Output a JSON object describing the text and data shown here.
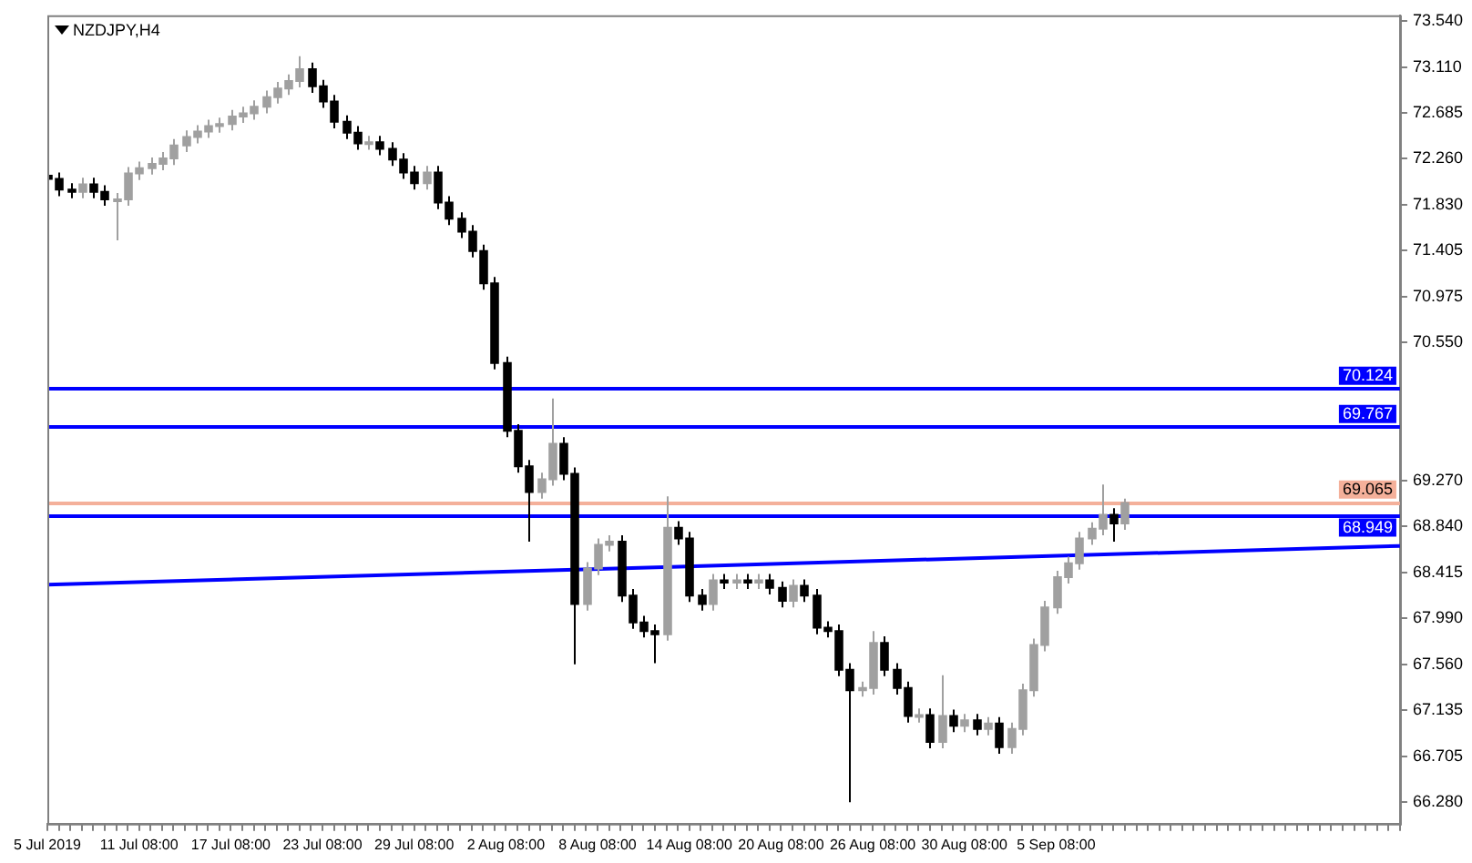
{
  "chart_data": {
    "type": "candlestick",
    "title": "NZDJPY,H4",
    "colors": [
      "#000000",
      "#000000",
      "#000000",
      "#a0a0a0",
      "#000000",
      "#000000",
      "#a0a0a0",
      "#a0a0a0",
      "#a0a0a0",
      "#a0a0a0",
      "#a0a0a0",
      "#a0a0a0",
      "#a0a0a0",
      "#a0a0a0",
      "#a0a0a0",
      "#a0a0a0",
      "#a0a0a0",
      "#a0a0a0",
      "#a0a0a0",
      "#a0a0a0",
      "#a0a0a0",
      "#a0a0a0",
      "#a0a0a0",
      "#000000",
      "#000000",
      "#000000",
      "#000000",
      "#000000",
      "#a0a0a0",
      "#000000",
      "#000000",
      "#000000",
      "#000000",
      "#a0a0a0",
      "#000000",
      "#000000",
      "#000000",
      "#000000",
      "#000000",
      "#000000",
      "#000000",
      "#000000",
      "#000000",
      "#a0a0a0",
      "#a0a0a0",
      "#000000",
      "#000000",
      "#a0a0a0",
      "#a0a0a0",
      "#a0a0a0",
      "#000000",
      "#000000",
      "#000000",
      "#000000",
      "#a0a0a0",
      "#000000",
      "#000000",
      "#000000",
      "#a0a0a0",
      "#000000",
      "#a0a0a0",
      "#000000",
      "#a0a0a0",
      "#000000",
      "#000000",
      "#a0a0a0",
      "#000000",
      "#000000",
      "#000000",
      "#000000",
      "#000000",
      "#a0a0a0",
      "#a0a0a0",
      "#000000",
      "#000000",
      "#000000",
      "#a0a0a0",
      "#000000",
      "#a0a0a0",
      "#000000",
      "#a0a0a0",
      "#000000",
      "#a0a0a0",
      "#000000",
      "#a0a0a0",
      "#a0a0a0",
      "#a0a0a0",
      "#a0a0a0",
      "#a0a0a0",
      "#a0a0a0",
      "#a0a0a0",
      "#a0a0a0",
      "#a0a0a0",
      "#000000",
      "#a0a0a0",
      null,
      null,
      null,
      null,
      null,
      null,
      null,
      null,
      null,
      null,
      null,
      null,
      null,
      null,
      null,
      null,
      null,
      null,
      null,
      null,
      null,
      null,
      null,
      null
    ],
    "categories": [
      "5 Jul 2019",
      null,
      null,
      null,
      null,
      null,
      null,
      null,
      "11 Jul 08:00",
      null,
      null,
      null,
      null,
      null,
      null,
      null,
      "17 Jul 08:00",
      null,
      null,
      null,
      null,
      null,
      null,
      null,
      "23 Jul 08:00",
      null,
      null,
      null,
      null,
      null,
      null,
      null,
      "29 Jul 08:00",
      null,
      null,
      null,
      null,
      null,
      null,
      null,
      "2 Aug 08:00",
      null,
      null,
      null,
      null,
      null,
      null,
      null,
      "8 Aug 08:00",
      null,
      null,
      null,
      null,
      null,
      null,
      null,
      "14 Aug 08:00",
      null,
      null,
      null,
      null,
      null,
      null,
      null,
      "20 Aug 08:00",
      null,
      null,
      null,
      null,
      null,
      null,
      null,
      "26 Aug 08:00",
      null,
      null,
      null,
      null,
      null,
      null,
      null,
      "30 Aug 08:00",
      null,
      null,
      null,
      null,
      null,
      null,
      null,
      "5 Sep 08:00",
      null,
      null,
      null,
      null,
      null,
      null,
      null,
      null,
      null,
      null,
      null,
      null,
      null,
      null,
      null,
      null,
      null,
      null,
      null,
      null,
      null,
      null,
      null,
      null,
      null,
      null,
      null,
      null,
      null,
      null
    ],
    "ohlc": [
      [
        72.1,
        72.16,
        72.01,
        72.07
      ],
      [
        72.07,
        72.13,
        71.91,
        71.97
      ],
      [
        71.97,
        72.03,
        71.89,
        71.95
      ],
      [
        71.95,
        72.08,
        71.89,
        72.02
      ],
      [
        72.02,
        72.08,
        71.89,
        71.95
      ],
      [
        71.95,
        72.01,
        71.82,
        71.88
      ],
      [
        71.88,
        71.94,
        71.5,
        71.88
      ],
      [
        71.88,
        72.18,
        71.82,
        72.12
      ],
      [
        72.12,
        72.23,
        72.06,
        72.17
      ],
      [
        72.17,
        72.27,
        72.11,
        72.21
      ],
      [
        72.21,
        72.32,
        72.15,
        72.26
      ],
      [
        72.26,
        72.44,
        72.2,
        72.38
      ],
      [
        72.38,
        72.52,
        72.32,
        72.46
      ],
      [
        72.46,
        72.57,
        72.4,
        72.51
      ],
      [
        72.51,
        72.62,
        72.45,
        72.56
      ],
      [
        72.56,
        72.64,
        72.5,
        72.58
      ],
      [
        72.58,
        72.71,
        72.52,
        72.65
      ],
      [
        72.65,
        72.74,
        72.59,
        72.68
      ],
      [
        72.68,
        72.8,
        72.62,
        72.74
      ],
      [
        72.74,
        72.89,
        72.68,
        72.83
      ],
      [
        72.83,
        72.97,
        72.77,
        72.91
      ],
      [
        72.91,
        73.04,
        72.85,
        72.98
      ],
      [
        72.98,
        73.21,
        72.92,
        73.09
      ],
      [
        73.09,
        73.15,
        72.87,
        72.93
      ],
      [
        72.93,
        72.99,
        72.73,
        72.79
      ],
      [
        72.79,
        72.85,
        72.54,
        72.6
      ],
      [
        72.6,
        72.66,
        72.44,
        72.5
      ],
      [
        72.5,
        72.56,
        72.34,
        72.4
      ],
      [
        72.4,
        72.47,
        72.34,
        72.41
      ],
      [
        72.41,
        72.47,
        72.29,
        72.35
      ],
      [
        72.35,
        72.41,
        72.19,
        72.25
      ],
      [
        72.25,
        72.31,
        72.07,
        72.13
      ],
      [
        72.13,
        72.19,
        71.97,
        72.03
      ],
      [
        72.03,
        72.19,
        71.97,
        72.13
      ],
      [
        72.13,
        72.19,
        71.79,
        71.85
      ],
      [
        71.85,
        71.91,
        71.64,
        71.7
      ],
      [
        71.7,
        71.76,
        71.52,
        71.58
      ],
      [
        71.58,
        71.64,
        71.34,
        71.4
      ],
      [
        71.4,
        71.46,
        71.04,
        71.1
      ],
      [
        71.1,
        71.16,
        70.3,
        70.36
      ],
      [
        70.36,
        70.42,
        69.67,
        69.73
      ],
      [
        69.73,
        69.79,
        69.34,
        69.4
      ],
      [
        69.4,
        69.46,
        68.7,
        69.16
      ],
      [
        69.16,
        69.34,
        69.1,
        69.28
      ],
      [
        69.28,
        70.03,
        69.22,
        69.61
      ],
      [
        69.61,
        69.67,
        69.27,
        69.33
      ],
      [
        69.33,
        69.39,
        67.56,
        68.12
      ],
      [
        68.12,
        68.51,
        68.06,
        68.45
      ],
      [
        68.45,
        68.73,
        68.39,
        68.67
      ],
      [
        68.67,
        68.76,
        68.61,
        68.7
      ],
      [
        68.7,
        68.76,
        68.14,
        68.2
      ],
      [
        68.2,
        68.26,
        67.89,
        67.95
      ],
      [
        67.95,
        68.01,
        67.81,
        67.87
      ],
      [
        67.87,
        67.93,
        67.57,
        67.84
      ],
      [
        67.84,
        69.12,
        67.78,
        68.83
      ],
      [
        68.83,
        68.89,
        68.67,
        68.73
      ],
      [
        68.73,
        68.79,
        68.14,
        68.2
      ],
      [
        68.2,
        68.26,
        68.06,
        68.12
      ],
      [
        68.12,
        68.4,
        68.06,
        68.34
      ],
      [
        68.34,
        68.4,
        68.26,
        68.32
      ],
      [
        68.32,
        68.4,
        68.26,
        68.34
      ],
      [
        68.34,
        68.4,
        68.26,
        68.32
      ],
      [
        68.32,
        68.4,
        68.26,
        68.34
      ],
      [
        68.34,
        68.4,
        68.21,
        68.27
      ],
      [
        68.27,
        68.33,
        68.09,
        68.15
      ],
      [
        68.15,
        68.35,
        68.09,
        68.29
      ],
      [
        68.29,
        68.35,
        68.14,
        68.2
      ],
      [
        68.2,
        68.26,
        67.84,
        67.9
      ],
      [
        67.9,
        67.96,
        67.81,
        67.87
      ],
      [
        67.87,
        67.93,
        67.45,
        67.51
      ],
      [
        67.51,
        67.57,
        66.28,
        67.32
      ],
      [
        67.32,
        67.4,
        67.26,
        67.34
      ],
      [
        67.34,
        67.87,
        67.28,
        67.76
      ],
      [
        67.76,
        67.82,
        67.45,
        67.51
      ],
      [
        67.51,
        67.57,
        67.28,
        67.34
      ],
      [
        67.34,
        67.4,
        67.02,
        67.08
      ],
      [
        67.08,
        67.15,
        67.02,
        67.09
      ],
      [
        67.09,
        67.15,
        66.78,
        66.84
      ],
      [
        66.84,
        67.46,
        66.78,
        67.08
      ],
      [
        67.08,
        67.14,
        66.93,
        66.99
      ],
      [
        66.99,
        67.1,
        66.93,
        67.04
      ],
      [
        67.04,
        67.1,
        66.9,
        66.96
      ],
      [
        66.96,
        67.07,
        66.9,
        67.01
      ],
      [
        67.01,
        67.07,
        66.73,
        66.79
      ],
      [
        66.79,
        67.02,
        66.73,
        66.96
      ],
      [
        66.96,
        67.38,
        66.9,
        67.32
      ],
      [
        67.32,
        67.8,
        67.26,
        67.74
      ],
      [
        67.74,
        68.15,
        67.68,
        68.09
      ],
      [
        68.09,
        68.43,
        68.03,
        68.37
      ],
      [
        68.37,
        68.56,
        68.31,
        68.5
      ],
      [
        68.5,
        68.79,
        68.44,
        68.73
      ],
      [
        68.73,
        68.88,
        68.67,
        68.82
      ],
      [
        68.82,
        69.23,
        68.76,
        68.95
      ],
      [
        68.95,
        69.01,
        68.7,
        68.87
      ],
      [
        68.87,
        69.1,
        68.81,
        69.06
      ],
      null,
      null,
      null,
      null,
      null,
      null,
      null,
      null,
      null,
      null,
      null,
      null,
      null,
      null,
      null,
      null,
      null,
      null,
      null,
      null,
      null,
      null,
      null,
      null
    ],
    "series": [
      {
        "type": "line",
        "color": "#0000ff",
        "values": [
          68.3,
          null,
          null,
          null,
          null,
          null,
          null,
          null,
          null,
          null,
          null,
          null,
          null,
          null,
          null,
          null,
          null,
          null,
          null,
          null,
          null,
          null,
          null,
          null,
          null,
          null,
          null,
          null,
          null,
          null,
          null,
          null,
          null,
          null,
          null,
          null,
          null,
          null,
          null,
          null,
          null,
          null,
          null,
          null,
          null,
          null,
          null,
          null,
          null,
          null,
          null,
          null,
          null,
          null,
          null,
          null,
          null,
          null,
          null,
          null,
          null,
          null,
          null,
          null,
          null,
          null,
          null,
          null,
          null,
          null,
          null,
          null,
          null,
          null,
          null,
          null,
          null,
          null,
          null,
          null,
          null,
          null,
          null,
          null,
          null,
          null,
          null,
          null,
          null,
          null,
          null,
          null,
          null,
          null,
          null,
          null,
          null,
          null,
          null,
          null,
          null,
          null,
          null,
          null,
          null,
          null,
          null,
          null,
          null,
          null,
          null,
          null,
          null,
          null,
          null,
          null,
          null,
          null,
          68.66
        ]
      }
    ],
    "ylim": [
      66.08,
      73.59
    ],
    "yticks": [
      {
        "value": 73.54,
        "label": "73.540"
      },
      {
        "value": 73.11,
        "label": "73.110"
      },
      {
        "value": 72.685,
        "label": "72.685"
      },
      {
        "value": 72.26,
        "label": "72.260"
      },
      {
        "value": 71.83,
        "label": "71.830"
      },
      {
        "value": 71.405,
        "label": "71.405"
      },
      {
        "value": 70.975,
        "label": "70.975"
      },
      {
        "value": 70.55,
        "label": "70.550"
      },
      {
        "value": 69.27,
        "label": "69.270"
      },
      {
        "value": 68.84,
        "label": "68.840"
      },
      {
        "value": 68.415,
        "label": "68.415"
      },
      {
        "value": 67.99,
        "label": "67.990"
      },
      {
        "value": 67.56,
        "label": "67.560"
      },
      {
        "value": 67.135,
        "label": "67.135"
      },
      {
        "value": 66.705,
        "label": "66.705"
      },
      {
        "value": 66.28,
        "label": "66.280"
      }
    ],
    "ref_lines": [
      {
        "axis": "y",
        "value": 70.124,
        "label": "70.124",
        "color": "#0000ff"
      },
      {
        "axis": "y",
        "value": 69.767,
        "label": "69.767",
        "color": "#0000ff"
      },
      {
        "axis": "y",
        "value": 69.065,
        "label": "69.065",
        "color": "#f4b09a"
      },
      {
        "axis": "y",
        "value": 68.949,
        "label": "68.949",
        "color": "#0000ff"
      }
    ],
    "grid": false,
    "legend": false
  }
}
